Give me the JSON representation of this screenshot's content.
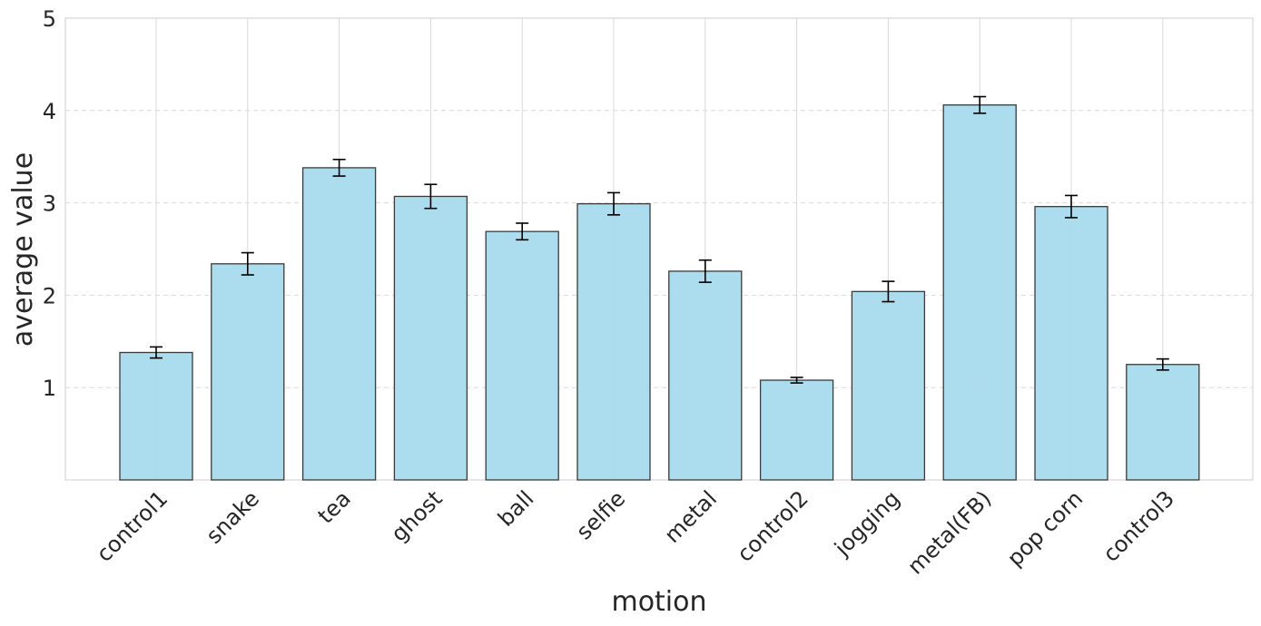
{
  "chart_data": {
    "type": "bar",
    "xlabel": "motion",
    "ylabel": "average value",
    "categories": [
      "control1",
      "snake",
      "tea",
      "ghost",
      "ball",
      "selfie",
      "metal",
      "control2",
      "jogging",
      "metal(FB)",
      "pop corn",
      "control3"
    ],
    "values": [
      1.38,
      2.34,
      3.38,
      3.07,
      2.69,
      2.99,
      2.26,
      1.08,
      2.04,
      4.06,
      2.96,
      1.25
    ],
    "errors": [
      0.06,
      0.12,
      0.09,
      0.13,
      0.09,
      0.12,
      0.12,
      0.03,
      0.11,
      0.09,
      0.12,
      0.06
    ],
    "ylim": [
      0,
      5
    ],
    "yticks": [
      "1",
      "2",
      "3",
      "4",
      "5"
    ],
    "bar_color": "#a8dbee",
    "bar_edge_color": "#3a3a3a",
    "grid": true,
    "legend": false
  }
}
